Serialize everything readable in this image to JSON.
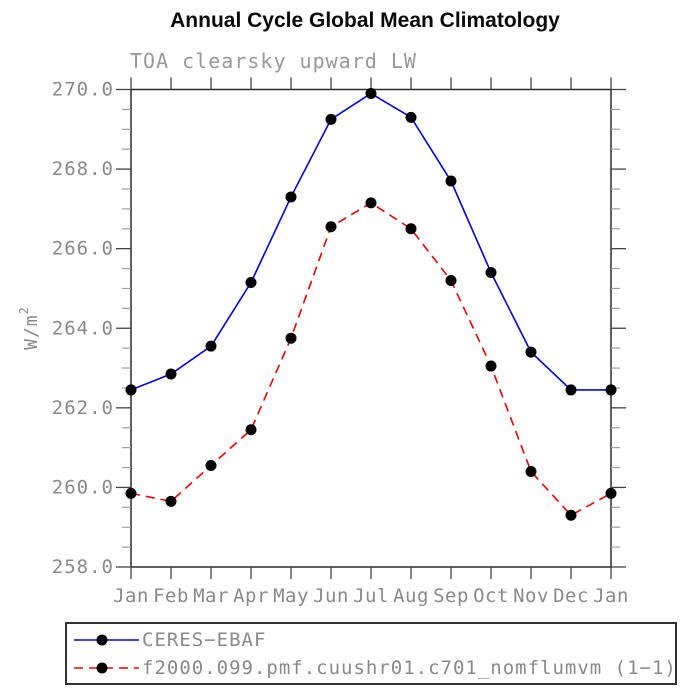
{
  "chart_data": {
    "type": "line",
    "title": "Annual Cycle Global Mean Climatology",
    "subtitle": "TOA clearsky upward LW",
    "xlabel": "",
    "ylabel": "W/m²",
    "ylabel_parts": {
      "base": "W/m",
      "exponent": "2"
    },
    "ylim": [
      258.0,
      270.0
    ],
    "ytick_values": [
      270,
      268,
      266,
      264,
      262,
      260,
      258
    ],
    "ytick_labels": [
      "270.0",
      "268.0",
      "266.0",
      "264.0",
      "262.0",
      "260.0",
      "258.0"
    ],
    "ytick_minor_step": 0.5,
    "grid": false,
    "categories": [
      "Jan",
      "Feb",
      "Mar",
      "Apr",
      "May",
      "Jun",
      "Jul",
      "Aug",
      "Sep",
      "Oct",
      "Nov",
      "Dec",
      "Jan"
    ],
    "series": [
      {
        "name": "CERES−EBAF",
        "color": "#0000ee",
        "line_style": "solid",
        "marker": "circle",
        "marker_color": "#000000",
        "values": [
          262.45,
          262.85,
          263.55,
          265.15,
          267.3,
          269.25,
          269.9,
          269.3,
          267.7,
          265.4,
          263.4,
          262.45,
          262.45
        ]
      },
      {
        "name": "f2000.099.pmf.cuushr01.c701_nomflumvm (1−1)",
        "color": "#f00000",
        "line_style": "dashed",
        "marker": "circle",
        "marker_color": "#000000",
        "values": [
          259.85,
          259.65,
          260.55,
          261.45,
          263.75,
          266.55,
          267.15,
          266.5,
          265.2,
          263.05,
          260.4,
          259.3,
          259.85
        ]
      }
    ],
    "legend": {
      "position": "bottom-left",
      "boxed": true
    }
  },
  "colors": {
    "background": "#ffffff",
    "frame": "#2b2b2b",
    "major_tick": "#444444",
    "minor_tick": "#a0a0a0",
    "tick_label": "#8a8a8a",
    "subtitle": "#999999",
    "title": "#0a0a0a"
  }
}
